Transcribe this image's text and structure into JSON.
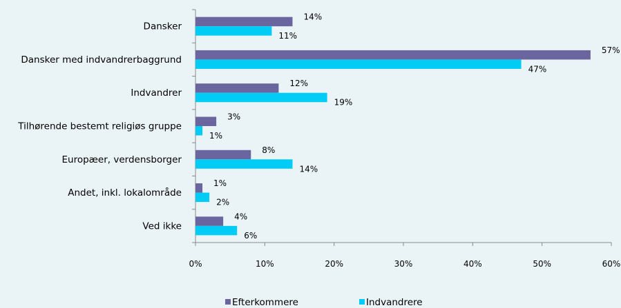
{
  "chart_data": {
    "type": "bar",
    "orientation": "horizontal",
    "categories": [
      "Dansker",
      "Dansker med indvandrerbaggrund",
      "Indvandrer",
      "Tilhørende bestemt religiøs gruppe",
      "Europæer, verdensborger",
      "Andet, inkl. lokalområde",
      "Ved ikke"
    ],
    "series": [
      {
        "name": "Efterkommere",
        "color": "#6a659e",
        "values": [
          14,
          57,
          12,
          3,
          8,
          1,
          4
        ],
        "labels": [
          "14%",
          "57%",
          "12%",
          "3%",
          "8%",
          "1%",
          "4%"
        ]
      },
      {
        "name": "Indvandrere",
        "color": "#00ccf5",
        "values": [
          11,
          47,
          19,
          1,
          14,
          2,
          6
        ],
        "labels": [
          "11%",
          "47%",
          "19%",
          "1%",
          "14%",
          "2%",
          "6%"
        ]
      }
    ],
    "xlim": [
      0,
      60
    ],
    "xticks": [
      0,
      10,
      20,
      30,
      40,
      50,
      60
    ],
    "xtick_labels": [
      "0%",
      "10%",
      "20%",
      "30%",
      "40%",
      "50%",
      "60%"
    ],
    "grid": false,
    "legend_position": "bottom"
  }
}
